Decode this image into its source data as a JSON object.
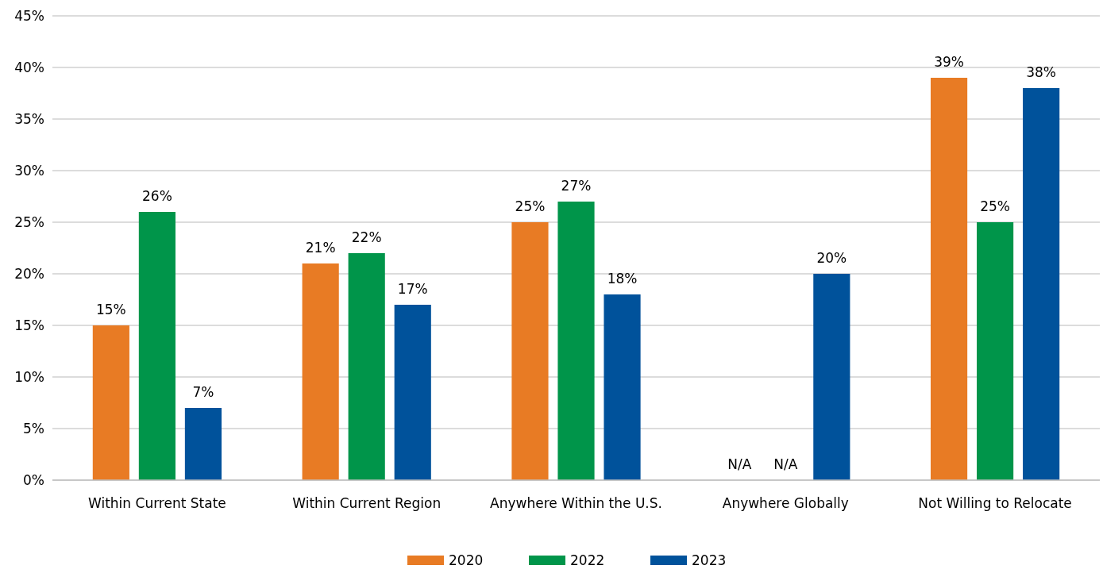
{
  "chart_data": {
    "type": "bar",
    "categories": [
      "Within Current State",
      "Within Current Region",
      "Anywhere Within the U.S.",
      "Anywhere Globally",
      "Not Willing to Relocate"
    ],
    "series": [
      {
        "name": "2020",
        "color": "#e87b24",
        "values": [
          15,
          21,
          25,
          null,
          39
        ],
        "value_labels": [
          "15%",
          "21%",
          "25%",
          "N/A",
          "39%"
        ]
      },
      {
        "name": "2022",
        "color": "#00954a",
        "values": [
          26,
          22,
          27,
          null,
          25
        ],
        "value_labels": [
          "26%",
          "22%",
          "27%",
          "N/A",
          "25%"
        ]
      },
      {
        "name": "2023",
        "color": "#00529b",
        "values": [
          7,
          17,
          18,
          20,
          38
        ],
        "value_labels": [
          "7%",
          "17%",
          "18%",
          "20%",
          "38%"
        ]
      }
    ],
    "ylim": [
      0,
      45
    ],
    "yticks": [
      {
        "value": 0,
        "label": "0%"
      },
      {
        "value": 5,
        "label": "5%"
      },
      {
        "value": 10,
        "label": "10%"
      },
      {
        "value": 15,
        "label": "15%"
      },
      {
        "value": 20,
        "label": "20%"
      },
      {
        "value": 25,
        "label": "25%"
      },
      {
        "value": 30,
        "label": "30%"
      },
      {
        "value": 35,
        "label": "35%"
      },
      {
        "value": 40,
        "label": "40%"
      },
      {
        "value": 45,
        "label": "45%"
      }
    ],
    "grid": "y",
    "legend": "bottom"
  }
}
